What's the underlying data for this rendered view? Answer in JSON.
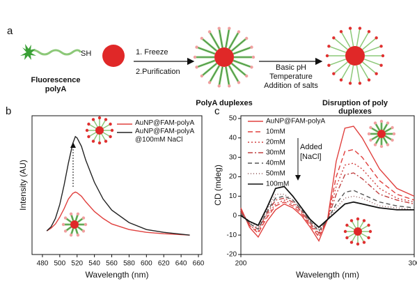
{
  "schematic": {
    "panel_label": "a",
    "sh": "SH",
    "fluorescence_polyA": [
      "Fluorescence",
      "polyA"
    ],
    "step1": [
      "1. Freeze",
      "2.Purification"
    ],
    "polyA_duplexes": "PolyA duplexes",
    "step2": [
      "Basic pH",
      "Temperature",
      "Addition of salts"
    ],
    "disruption": [
      "Disruption of poly",
      "duplexes"
    ]
  },
  "chart_data": [
    {
      "type": "line",
      "panel_label": "b",
      "xlabel": "Wavelength (nm)",
      "ylabel": "Intensity (AU)",
      "x": [
        485,
        490,
        495,
        500,
        505,
        510,
        515,
        518,
        520,
        525,
        530,
        540,
        550,
        560,
        580,
        600,
        620,
        650
      ],
      "xlim": [
        468,
        664
      ],
      "xticks": [
        480,
        500,
        520,
        540,
        560,
        580,
        600,
        620,
        640,
        660
      ],
      "ylim": [
        0,
        1
      ],
      "series": [
        {
          "name": "AuNP@FAM-polyA",
          "color": "#e0403e",
          "values": [
            0.17,
            0.19,
            0.22,
            0.27,
            0.33,
            0.4,
            0.44,
            0.45,
            0.445,
            0.42,
            0.38,
            0.31,
            0.26,
            0.22,
            0.18,
            0.16,
            0.15,
            0.14
          ]
        },
        {
          "name": "AuNP@FAM-polyA @100mM NaCl",
          "color": "#222222",
          "values": [
            0.17,
            0.2,
            0.26,
            0.36,
            0.5,
            0.66,
            0.8,
            0.85,
            0.84,
            0.78,
            0.68,
            0.52,
            0.4,
            0.32,
            0.23,
            0.18,
            0.16,
            0.14
          ]
        }
      ]
    },
    {
      "type": "line",
      "panel_label": "c",
      "xlabel": "Wavelength (nm)",
      "ylabel": "CD (mdeg)",
      "annotation": [
        "Added",
        "[NaCl]"
      ],
      "x": [
        200,
        205,
        210,
        215,
        220,
        225,
        230,
        235,
        240,
        245,
        250,
        255,
        260,
        265,
        270,
        275,
        280,
        290,
        300
      ],
      "xlim": [
        200,
        300
      ],
      "xticks": [
        200,
        300
      ],
      "ylim": [
        -20,
        51.4
      ],
      "yticks": [
        -20,
        -10,
        0,
        10,
        20,
        30,
        40,
        50
      ],
      "series": [
        {
          "name": "AuNP@FAM-polyA",
          "color": "#e0403e",
          "dash": "",
          "values": [
            4,
            -6,
            -11,
            -3,
            3,
            6,
            4,
            0,
            -6,
            -13,
            -2,
            28,
            45,
            46,
            40,
            32,
            24,
            14,
            10
          ]
        },
        {
          "name": "10mM",
          "color": "#e0403e",
          "dash": "7,4",
          "values": [
            3,
            -5,
            -9,
            -1,
            5,
            7,
            5,
            1,
            -5,
            -11,
            -2,
            20,
            33,
            34,
            30,
            24,
            18,
            11,
            8
          ]
        },
        {
          "name": "20mM",
          "color": "#d04040",
          "dash": "2,3",
          "values": [
            3,
            -5,
            -8,
            0,
            6,
            8,
            6,
            2,
            -4,
            -10,
            -2,
            15,
            26,
            27,
            24,
            19,
            14,
            9,
            7
          ]
        },
        {
          "name": "30mM",
          "color": "#c04040",
          "dash": "7,3,2,3",
          "values": [
            2,
            -4,
            -7,
            1,
            8,
            9,
            7,
            2,
            -4,
            -9,
            -2,
            11,
            21,
            22,
            19,
            15,
            11,
            8,
            6
          ]
        },
        {
          "name": "40mM",
          "color": "#555555",
          "dash": "6,4",
          "values": [
            1,
            -4,
            -7,
            2,
            9,
            10,
            8,
            3,
            -3,
            -8,
            -2,
            6,
            12,
            13,
            11,
            9,
            7,
            5,
            4
          ]
        },
        {
          "name": "50mM",
          "color": "#8a5050",
          "dash": "1,3",
          "values": [
            1,
            -3,
            -6,
            3,
            11,
            11,
            8,
            3,
            -3,
            -7,
            -2,
            4,
            9,
            10,
            9,
            7,
            5,
            4,
            3
          ]
        },
        {
          "name": "100mM",
          "color": "#111111",
          "dash": "",
          "values": [
            0,
            -3,
            -5,
            4,
            14,
            15,
            10,
            4,
            -2,
            -6,
            -2,
            2,
            6,
            7,
            6,
            5,
            4,
            3,
            3
          ]
        }
      ]
    }
  ]
}
